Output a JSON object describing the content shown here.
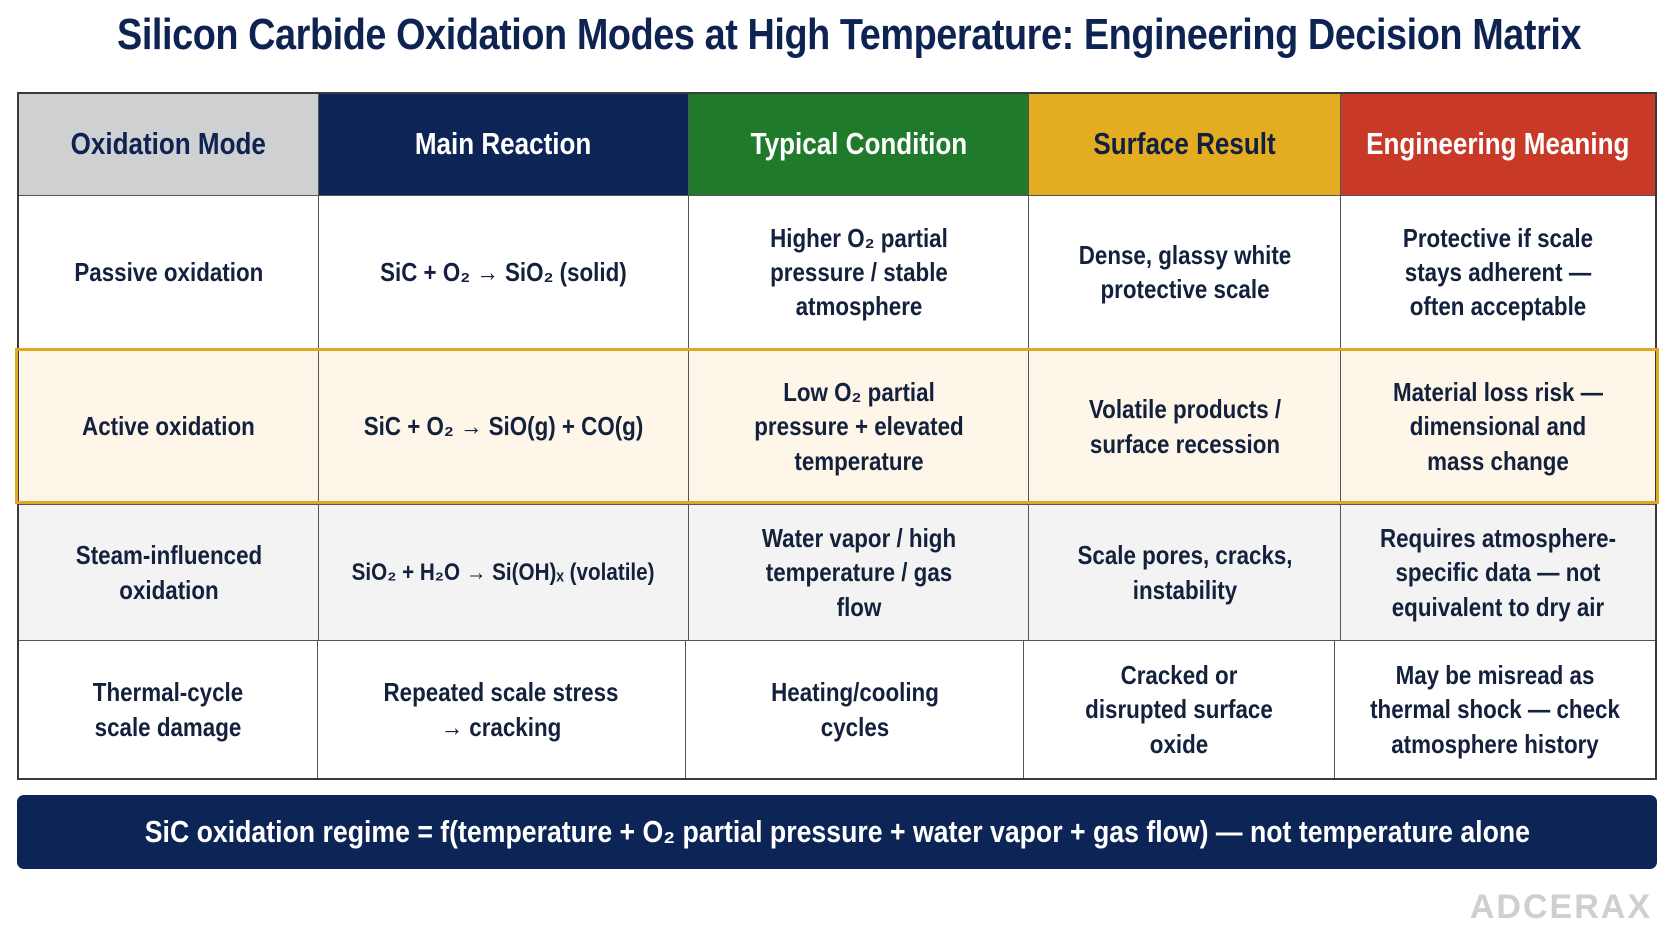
{
  "title": "Silicon Carbide Oxidation Modes at High Temperature: Engineering Decision Matrix",
  "columns": [
    "Oxidation Mode",
    "Main Reaction",
    "Typical Condition",
    "Surface Result",
    "Engineering Meaning"
  ],
  "column_colors": [
    "#cfd0d2",
    "#0c2456",
    "#1f7a2b",
    "#e4ad21",
    "#c83a27"
  ],
  "highlight_color": "#e2a725",
  "highlighted_row": "Active oxidation",
  "rows": [
    {
      "mode": "Passive oxidation",
      "reaction": "SiC + O₂ → SiO₂ (solid)",
      "condition": "Higher O₂ partial pressure / stable atmosphere",
      "surface": "Dense, glassy white protective scale",
      "meaning": "Protective if scale stays adherent — often acceptable"
    },
    {
      "mode": "Active oxidation",
      "reaction": "SiC + O₂ → SiO(g) + CO(g)",
      "condition": "Low O₂ partial pressure + elevated temperature",
      "surface": "Volatile products / surface recession",
      "meaning": "Material loss risk — dimensional and mass change"
    },
    {
      "mode": "Steam-influenced oxidation",
      "reaction": "SiO₂ + H₂O → Si(OH)ₓ (volatile)",
      "condition": "Water vapor / high temperature / gas flow",
      "surface": "Scale pores, cracks, instability",
      "meaning": "Requires atmosphere-specific data — not equivalent to dry air"
    },
    {
      "mode": "Thermal-cycle scale damage",
      "reaction": "Repeated scale stress → cracking",
      "condition": "Heating/cooling cycles",
      "surface": "Cracked or disrupted surface oxide",
      "meaning": "May be misread as thermal shock — check atmosphere history"
    }
  ],
  "banner": "SiC oxidation regime = f(temperature + O₂ partial pressure + water vapor + gas flow) — not temperature alone",
  "brand": "ADCERAX"
}
